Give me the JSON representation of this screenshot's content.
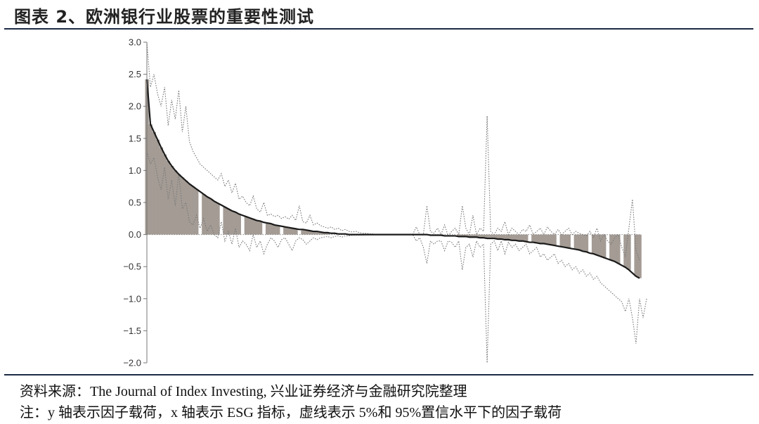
{
  "header": {
    "title": "图表 2、欧洲银行业股票的重要性测试"
  },
  "footer": {
    "source": "资料来源：The Journal of Index Investing, 兴业证券经济与金融研究院整理",
    "note": "注：y 轴表示因子载荷，x 轴表示 ESG 指标，虚线表示 5%和 95%置信水平下的因子载荷"
  },
  "chart_data": {
    "type": "area",
    "title": "图表 2、欧洲银行业股票的重要性测试",
    "xlabel": "",
    "ylabel": "",
    "ylim": [
      -2.0,
      3.0
    ],
    "y_ticks": [
      "3.0",
      "2.5",
      "2.0",
      "1.5",
      "1.0",
      "0.5",
      "0.0",
      "−0.5",
      "−1.0",
      "−1.5",
      "−2.0"
    ],
    "grid": false,
    "n_points": 140,
    "series": [
      {
        "role": "factor-loading",
        "style": "solid",
        "shaded_bars": true,
        "values": [
          2.42,
          1.72,
          1.6,
          1.48,
          1.36,
          1.25,
          1.15,
          1.07,
          1.0,
          0.94,
          0.89,
          0.84,
          0.79,
          0.75,
          0.71,
          0.67,
          0.63,
          0.59,
          0.56,
          0.52,
          0.49,
          0.46,
          0.43,
          0.4,
          0.37,
          0.35,
          0.32,
          0.3,
          0.28,
          0.26,
          0.24,
          0.22,
          0.21,
          0.19,
          0.18,
          0.17,
          0.15,
          0.14,
          0.13,
          0.12,
          0.11,
          0.1,
          0.09,
          0.08,
          0.08,
          0.07,
          0.06,
          0.05,
          0.05,
          0.04,
          0.03,
          0.03,
          0.02,
          0.02,
          0.01,
          0.01,
          0.01,
          0.0,
          0.0,
          0.0,
          0.0,
          0.0,
          0.0,
          0.0,
          0.0,
          0.0,
          0.0,
          0.0,
          0.0,
          0.0,
          0.0,
          0.0,
          0.0,
          0.0,
          0.0,
          0.0,
          0.0,
          0.0,
          0.0,
          0.0,
          -0.01,
          -0.01,
          -0.01,
          -0.01,
          -0.02,
          -0.02,
          -0.02,
          -0.02,
          -0.03,
          -0.03,
          -0.03,
          -0.04,
          -0.04,
          -0.04,
          -0.05,
          -0.05,
          -0.06,
          -0.06,
          -0.06,
          -0.07,
          -0.07,
          -0.08,
          -0.08,
          -0.09,
          -0.09,
          -0.1,
          -0.1,
          -0.11,
          -0.12,
          -0.12,
          -0.13,
          -0.14,
          -0.14,
          -0.15,
          -0.16,
          -0.17,
          -0.18,
          -0.19,
          -0.2,
          -0.21,
          -0.22,
          -0.23,
          -0.24,
          -0.26,
          -0.27,
          -0.29,
          -0.3,
          -0.32,
          -0.34,
          -0.36,
          -0.38,
          -0.4,
          -0.42,
          -0.45,
          -0.48,
          -0.51,
          -0.55,
          -0.6,
          -0.65,
          -0.68
        ]
      },
      {
        "role": "upper-bound-95",
        "style": "dotted",
        "values": [
          3.0,
          2.3,
          2.5,
          2.2,
          2.0,
          2.3,
          1.7,
          2.1,
          1.8,
          2.25,
          1.6,
          2.0,
          1.45,
          1.3,
          1.2,
          1.1,
          1.05,
          1.0,
          0.95,
          0.9,
          0.85,
          0.95,
          0.75,
          0.85,
          0.65,
          0.8,
          0.55,
          0.6,
          0.5,
          0.45,
          0.6,
          0.4,
          0.35,
          0.5,
          0.3,
          0.32,
          0.28,
          0.3,
          0.25,
          0.28,
          0.24,
          0.3,
          0.22,
          0.45,
          0.2,
          0.18,
          0.3,
          0.15,
          0.18,
          0.14,
          0.12,
          0.1,
          0.12,
          0.08,
          0.1,
          0.06,
          0.08,
          0.05,
          0.04,
          0.05,
          0.03,
          0.02,
          0.02,
          0.01,
          0.01,
          0.0,
          0.0,
          0.0,
          0.0,
          0.0,
          0.0,
          0.0,
          0.0,
          0.0,
          0.0,
          0.0,
          0.12,
          0.0,
          0.0,
          0.45,
          0.05,
          0.02,
          0.1,
          0.0,
          0.15,
          -0.02,
          0.05,
          0.1,
          0.0,
          0.45,
          0.1,
          0.0,
          0.3,
          0.0,
          0.1,
          0.05,
          1.85,
          0.05,
          0.0,
          0.1,
          0.05,
          0.2,
          0.0,
          0.1,
          0.05,
          0.0,
          0.08,
          0.05,
          0.15,
          0.0,
          0.05,
          0.1,
          0.0,
          0.12,
          0.05,
          0.0,
          0.08,
          0.0,
          0.05,
          0.1,
          0.0,
          0.05,
          0.02,
          0.0,
          -0.02,
          0.05,
          -0.05,
          0.1,
          -0.1,
          0.0,
          -0.1,
          -0.15,
          -0.05,
          0.0,
          -0.2,
          -0.35,
          0.1,
          0.55,
          -0.25,
          -0.4
        ]
      },
      {
        "role": "lower-bound-5",
        "style": "dotted",
        "values": [
          1.3,
          1.1,
          1.2,
          0.9,
          0.7,
          1.05,
          0.55,
          0.85,
          0.45,
          0.95,
          0.4,
          0.5,
          0.2,
          0.15,
          0.3,
          0.1,
          0.25,
          0.05,
          0.15,
          0.0,
          -0.05,
          0.2,
          -0.1,
          0.05,
          -0.15,
          0.1,
          -0.2,
          -0.1,
          -0.15,
          -0.25,
          0.0,
          -0.2,
          -0.1,
          -0.3,
          -0.15,
          -0.05,
          -0.1,
          -0.2,
          -0.08,
          -0.05,
          -0.15,
          -0.25,
          -0.1,
          -0.05,
          -0.08,
          -0.15,
          -0.1,
          -0.05,
          -0.08,
          -0.05,
          -0.04,
          -0.03,
          -0.05,
          -0.03,
          -0.02,
          -0.04,
          -0.02,
          -0.02,
          -0.01,
          -0.01,
          -0.01,
          -0.01,
          0.0,
          0.0,
          0.0,
          0.0,
          0.0,
          0.0,
          0.0,
          0.0,
          0.0,
          0.0,
          0.0,
          0.0,
          0.0,
          0.0,
          -0.1,
          -0.05,
          -0.2,
          -0.45,
          -0.1,
          -0.15,
          -0.1,
          -0.1,
          -0.25,
          -0.1,
          -0.12,
          -0.2,
          -0.1,
          -0.55,
          -0.2,
          -0.15,
          -0.35,
          -0.1,
          -0.2,
          -0.15,
          -2.0,
          -0.15,
          -0.1,
          -0.25,
          -0.1,
          -0.3,
          -0.12,
          -0.2,
          -0.15,
          -0.25,
          -0.2,
          -0.15,
          -0.3,
          -0.25,
          -0.2,
          -0.35,
          -0.3,
          -0.4,
          -0.35,
          -0.3,
          -0.45,
          -0.4,
          -0.5,
          -0.45,
          -0.55,
          -0.5,
          -0.6,
          -0.55,
          -0.65,
          -0.6,
          -0.7,
          -0.65,
          -0.75,
          -0.8,
          -0.85,
          -0.9,
          -0.95,
          -1.0,
          -1.05,
          -1.2,
          -1.0,
          -1.3,
          -1.7,
          -1.0,
          -1.3,
          -1.0
        ]
      }
    ]
  }
}
